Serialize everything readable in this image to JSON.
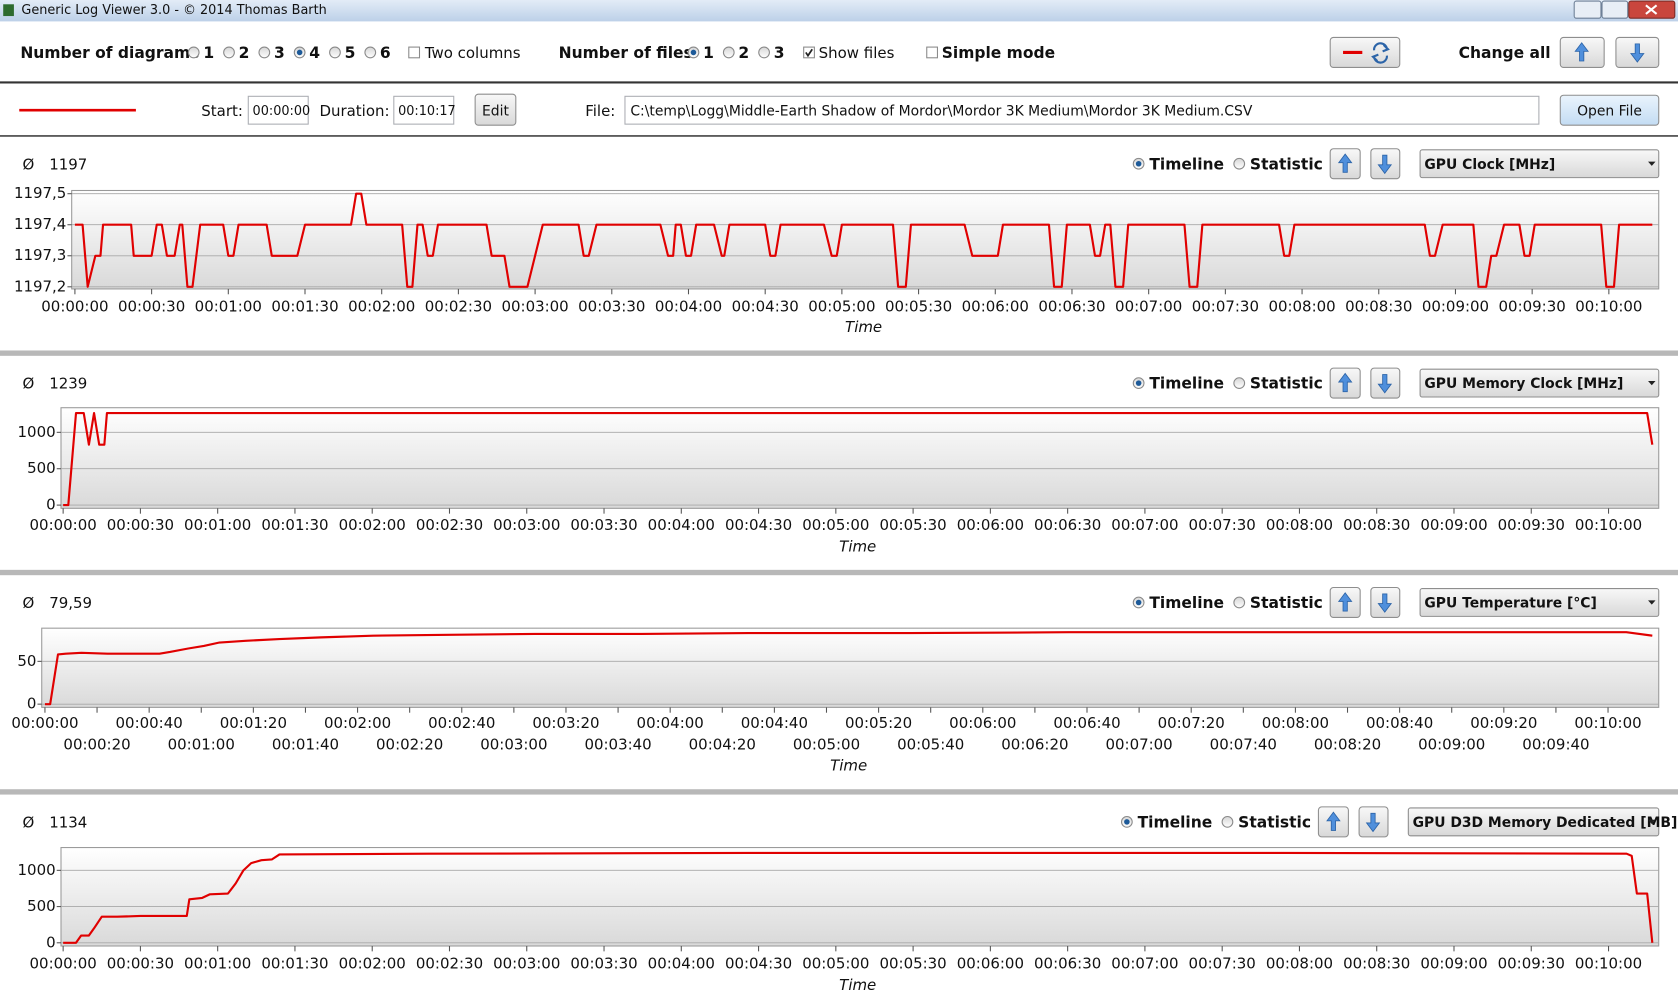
{
  "window": {
    "title": "Generic Log Viewer 3.0 - © 2014 Thomas Barth"
  },
  "toolbar": {
    "diagrams_label": "Number of diagrams",
    "diagram_options": [
      "1",
      "2",
      "3",
      "4",
      "5",
      "6"
    ],
    "two_columns": "Two columns",
    "files_label": "Number of files",
    "file_options": [
      "1",
      "2",
      "3"
    ],
    "show_files": "Show files",
    "simple_mode": "Simple mode",
    "change_all": "Change all"
  },
  "file_bar": {
    "start_label": "Start:",
    "start": "00:00:00",
    "duration_label": "Duration:",
    "duration": "00:10:17",
    "edit": "Edit",
    "file_label": "File:",
    "file": "C:\\temp\\Logg\\Middle-Earth Shadow of Mordor\\Mordor 3K Medium\\Mordor 3K Medium.CSV",
    "open": "Open File",
    "line_color": "#e00000"
  },
  "diagrams": [
    {
      "avg_symbol": "Ø",
      "avg": "1197",
      "timeline": "Timeline",
      "statistic": "Statistic",
      "sensor": "GPU Clock [MHz]",
      "chart": {
        "type": "line",
        "color": "#e00000",
        "xlabel": "Time",
        "grid": true,
        "xlim": [
          0,
          617
        ],
        "ylim": [
          1197.2,
          1197.5
        ],
        "yticks": [
          {
            "value": 1197.2,
            "label": "1197,2"
          },
          {
            "value": 1197.3,
            "label": "1197,3"
          },
          {
            "value": 1197.4,
            "label": "1197,4"
          },
          {
            "value": 1197.5,
            "label": "1197,5"
          }
        ],
        "xticks": [
          {
            "value": 0,
            "label": "00:00:00"
          },
          {
            "value": 30,
            "label": "00:00:30"
          },
          {
            "value": 60,
            "label": "00:01:00"
          },
          {
            "value": 90,
            "label": "00:01:30"
          },
          {
            "value": 120,
            "label": "00:02:00"
          },
          {
            "value": 150,
            "label": "00:02:30"
          },
          {
            "value": 180,
            "label": "00:03:00"
          },
          {
            "value": 210,
            "label": "00:03:30"
          },
          {
            "value": 240,
            "label": "00:04:00"
          },
          {
            "value": 270,
            "label": "00:04:30"
          },
          {
            "value": 300,
            "label": "00:05:00"
          },
          {
            "value": 330,
            "label": "00:05:30"
          },
          {
            "value": 360,
            "label": "00:06:00"
          },
          {
            "value": 390,
            "label": "00:06:30"
          },
          {
            "value": 420,
            "label": "00:07:00"
          },
          {
            "value": 450,
            "label": "00:07:30"
          },
          {
            "value": 480,
            "label": "00:08:00"
          },
          {
            "value": 510,
            "label": "00:08:30"
          },
          {
            "value": 540,
            "label": "00:09:00"
          },
          {
            "value": 570,
            "label": "00:09:30"
          },
          {
            "value": 600,
            "label": "00:10:00"
          }
        ],
        "x": [
          0,
          3,
          5,
          8,
          10,
          11,
          22,
          23,
          30,
          32,
          34,
          36,
          39,
          41,
          42,
          44,
          46,
          49,
          58,
          60,
          62,
          64,
          75,
          77,
          87,
          90,
          108,
          110,
          112,
          114,
          128,
          130,
          132,
          134,
          136,
          138,
          140,
          142,
          161,
          163,
          168,
          170,
          177,
          183,
          197,
          199,
          201,
          204,
          229,
          232,
          234,
          235,
          237,
          239,
          241,
          243,
          250,
          253,
          254,
          256,
          270,
          272,
          274,
          276,
          293,
          296,
          298,
          300,
          320,
          322,
          325,
          327,
          348,
          351,
          361,
          363,
          381,
          383,
          386,
          388,
          397,
          399,
          401,
          403,
          405,
          407,
          410,
          412,
          434,
          436,
          439,
          441,
          471,
          473,
          475,
          477,
          528,
          530,
          532,
          535,
          547,
          549,
          552,
          554,
          556,
          559,
          565,
          567,
          569,
          571,
          597,
          599,
          602,
          604,
          617
        ],
        "values": [
          1197.4,
          1197.4,
          1197.2,
          1197.3,
          1197.3,
          1197.4,
          1197.4,
          1197.3,
          1197.3,
          1197.4,
          1197.4,
          1197.3,
          1197.3,
          1197.4,
          1197.4,
          1197.2,
          1197.2,
          1197.4,
          1197.4,
          1197.3,
          1197.3,
          1197.4,
          1197.4,
          1197.3,
          1197.3,
          1197.4,
          1197.4,
          1197.5,
          1197.5,
          1197.4,
          1197.4,
          1197.2,
          1197.2,
          1197.4,
          1197.4,
          1197.3,
          1197.3,
          1197.4,
          1197.4,
          1197.3,
          1197.3,
          1197.2,
          1197.2,
          1197.4,
          1197.4,
          1197.3,
          1197.3,
          1197.4,
          1197.4,
          1197.3,
          1197.3,
          1197.4,
          1197.4,
          1197.3,
          1197.3,
          1197.4,
          1197.4,
          1197.3,
          1197.3,
          1197.4,
          1197.4,
          1197.3,
          1197.3,
          1197.4,
          1197.4,
          1197.3,
          1197.3,
          1197.4,
          1197.4,
          1197.2,
          1197.2,
          1197.4,
          1197.4,
          1197.3,
          1197.3,
          1197.4,
          1197.4,
          1197.2,
          1197.2,
          1197.4,
          1197.4,
          1197.3,
          1197.3,
          1197.4,
          1197.4,
          1197.2,
          1197.2,
          1197.4,
          1197.4,
          1197.2,
          1197.2,
          1197.4,
          1197.4,
          1197.3,
          1197.3,
          1197.4,
          1197.4,
          1197.3,
          1197.3,
          1197.4,
          1197.4,
          1197.2,
          1197.2,
          1197.3,
          1197.3,
          1197.4,
          1197.4,
          1197.3,
          1197.3,
          1197.4,
          1197.4,
          1197.2,
          1197.2,
          1197.4,
          1197.4
        ]
      }
    },
    {
      "avg_symbol": "Ø",
      "avg": "1239",
      "timeline": "Timeline",
      "statistic": "Statistic",
      "sensor": "GPU Memory Clock [MHz]",
      "chart": {
        "type": "line",
        "color": "#e00000",
        "xlabel": "Time",
        "grid": true,
        "xlim": [
          0,
          617
        ],
        "ylim": [
          0,
          1300
        ],
        "yticks": [
          0,
          500,
          1000
        ],
        "xticks": [
          {
            "value": 0,
            "label": "00:00:00"
          },
          {
            "value": 30,
            "label": "00:00:30"
          },
          {
            "value": 60,
            "label": "00:01:00"
          },
          {
            "value": 90,
            "label": "00:01:30"
          },
          {
            "value": 120,
            "label": "00:02:00"
          },
          {
            "value": 150,
            "label": "00:02:30"
          },
          {
            "value": 180,
            "label": "00:03:00"
          },
          {
            "value": 210,
            "label": "00:03:30"
          },
          {
            "value": 240,
            "label": "00:04:00"
          },
          {
            "value": 270,
            "label": "00:04:30"
          },
          {
            "value": 300,
            "label": "00:05:00"
          },
          {
            "value": 330,
            "label": "00:05:30"
          },
          {
            "value": 360,
            "label": "00:06:00"
          },
          {
            "value": 390,
            "label": "00:06:30"
          },
          {
            "value": 420,
            "label": "00:07:00"
          },
          {
            "value": 450,
            "label": "00:07:30"
          },
          {
            "value": 480,
            "label": "00:08:00"
          },
          {
            "value": 510,
            "label": "00:08:30"
          },
          {
            "value": 540,
            "label": "00:09:00"
          },
          {
            "value": 570,
            "label": "00:09:30"
          },
          {
            "value": 600,
            "label": "00:10:00"
          }
        ],
        "x": [
          0,
          2,
          5,
          8,
          10,
          12,
          14,
          16,
          17,
          615,
          617
        ],
        "values": [
          0,
          0,
          1265,
          1265,
          830,
          1265,
          830,
          830,
          1265,
          1265,
          830
        ]
      }
    },
    {
      "avg_symbol": "Ø",
      "avg": "79,59",
      "timeline": "Timeline",
      "statistic": "Statistic",
      "sensor": "GPU Temperature [°C]",
      "chart": {
        "type": "line",
        "color": "#e00000",
        "xlabel": "Time",
        "grid": true,
        "xlim": [
          0,
          617
        ],
        "ylim": [
          0,
          87.5
        ],
        "yticks": [
          0,
          50
        ],
        "xticks": [
          {
            "value": 0,
            "label": "00:00:00"
          },
          {
            "value": 20,
            "label": "00:00:20"
          },
          {
            "value": 40,
            "label": "00:00:40"
          },
          {
            "value": 60,
            "label": "00:01:00"
          },
          {
            "value": 80,
            "label": "00:01:20"
          },
          {
            "value": 100,
            "label": "00:01:40"
          },
          {
            "value": 120,
            "label": "00:02:00"
          },
          {
            "value": 140,
            "label": "00:02:20"
          },
          {
            "value": 160,
            "label": "00:02:40"
          },
          {
            "value": 180,
            "label": "00:03:00"
          },
          {
            "value": 200,
            "label": "00:03:20"
          },
          {
            "value": 220,
            "label": "00:03:40"
          },
          {
            "value": 240,
            "label": "00:04:00"
          },
          {
            "value": 260,
            "label": "00:04:20"
          },
          {
            "value": 280,
            "label": "00:04:40"
          },
          {
            "value": 300,
            "label": "00:05:00"
          },
          {
            "value": 320,
            "label": "00:05:20"
          },
          {
            "value": 340,
            "label": "00:05:40"
          },
          {
            "value": 360,
            "label": "00:06:00"
          },
          {
            "value": 380,
            "label": "00:06:20"
          },
          {
            "value": 400,
            "label": "00:06:40"
          },
          {
            "value": 420,
            "label": "00:07:00"
          },
          {
            "value": 440,
            "label": "00:07:20"
          },
          {
            "value": 460,
            "label": "00:07:40"
          },
          {
            "value": 480,
            "label": "00:08:00"
          },
          {
            "value": 500,
            "label": "00:08:20"
          },
          {
            "value": 520,
            "label": "00:08:40"
          },
          {
            "value": 540,
            "label": "00:09:00"
          },
          {
            "value": 560,
            "label": "00:09:20"
          },
          {
            "value": 580,
            "label": "00:09:40"
          },
          {
            "value": 600,
            "label": "00:10:00"
          }
        ],
        "x": [
          0,
          2,
          5,
          8,
          14,
          24,
          44,
          48,
          55,
          61,
          67,
          77,
          90,
          106,
          126,
          155,
          188,
          229,
          270,
          332,
          393,
          476,
          558,
          607,
          617
        ],
        "values": [
          0,
          0,
          58,
          59,
          60,
          59,
          59,
          61,
          65,
          68,
          72,
          74,
          76,
          78,
          80,
          81,
          82,
          82,
          83,
          83,
          84,
          84,
          84,
          84,
          80
        ]
      }
    },
    {
      "avg_symbol": "Ø",
      "avg": "1134",
      "timeline": "Timeline",
      "statistic": "Statistic",
      "sensor": "GPU D3D Memory Dedicated [MB]",
      "chart": {
        "type": "line",
        "color": "#e00000",
        "xlabel": "Time",
        "grid": true,
        "xlim": [
          0,
          617
        ],
        "ylim": [
          0,
          1300
        ],
        "yticks": [
          0,
          500,
          1000
        ],
        "xticks": [
          {
            "value": 0,
            "label": "00:00:00"
          },
          {
            "value": 30,
            "label": "00:00:30"
          },
          {
            "value": 60,
            "label": "00:01:00"
          },
          {
            "value": 90,
            "label": "00:01:30"
          },
          {
            "value": 120,
            "label": "00:02:00"
          },
          {
            "value": 150,
            "label": "00:02:30"
          },
          {
            "value": 180,
            "label": "00:03:00"
          },
          {
            "value": 210,
            "label": "00:03:30"
          },
          {
            "value": 240,
            "label": "00:04:00"
          },
          {
            "value": 270,
            "label": "00:04:30"
          },
          {
            "value": 300,
            "label": "00:05:00"
          },
          {
            "value": 330,
            "label": "00:05:30"
          },
          {
            "value": 360,
            "label": "00:06:00"
          },
          {
            "value": 390,
            "label": "00:06:30"
          },
          {
            "value": 420,
            "label": "00:07:00"
          },
          {
            "value": 450,
            "label": "00:07:30"
          },
          {
            "value": 480,
            "label": "00:08:00"
          },
          {
            "value": 510,
            "label": "00:08:30"
          },
          {
            "value": 540,
            "label": "00:09:00"
          },
          {
            "value": 570,
            "label": "00:09:30"
          },
          {
            "value": 600,
            "label": "00:10:00"
          }
        ],
        "x": [
          0,
          5,
          7,
          10,
          12,
          15,
          21,
          30,
          48,
          49,
          54,
          57,
          64,
          67,
          70,
          73,
          77,
          81,
          84,
          142,
          266,
          474,
          607,
          609,
          611,
          615,
          617
        ],
        "values": [
          0,
          0,
          100,
          100,
          200,
          360,
          360,
          370,
          370,
          600,
          620,
          670,
          680,
          820,
          1000,
          1100,
          1140,
          1150,
          1220,
          1230,
          1240,
          1240,
          1230,
          1200,
          680,
          680,
          0
        ]
      }
    }
  ]
}
